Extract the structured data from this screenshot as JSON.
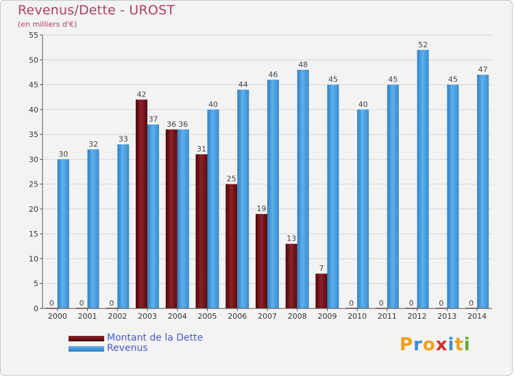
{
  "header": {
    "title": "Revenus/Dette - UROST",
    "subtitle": "(en milliers d'€)"
  },
  "legend": {
    "items": [
      {
        "label": "Montant de la Dette",
        "color": "#6b1014"
      },
      {
        "label": "Revenus",
        "color": "#4a9fe0"
      }
    ]
  },
  "logo": {
    "letters": [
      "P",
      "r",
      "o",
      "x",
      "i",
      "t",
      "i"
    ],
    "colors": [
      "#f0a020",
      "#3a8fd8",
      "#f0a020",
      "#d03030",
      "#3a8fd8",
      "#f0a020",
      "#60b030"
    ]
  },
  "chart_data": {
    "type": "bar",
    "title": "Revenus/Dette - UROST",
    "subtitle": "(en milliers d'€)",
    "categories": [
      "2000",
      "2001",
      "2002",
      "2003",
      "2004",
      "2005",
      "2006",
      "2007",
      "2008",
      "2009",
      "2010",
      "2011",
      "2012",
      "2013",
      "2014"
    ],
    "series": [
      {
        "name": "Montant de la Dette",
        "color": "#6b1014",
        "values": [
          0,
          0,
          0,
          42,
          36,
          31,
          25,
          19,
          13,
          7,
          0,
          0,
          0,
          0,
          0
        ]
      },
      {
        "name": "Revenus",
        "color": "#4a9fe0",
        "values": [
          30,
          32,
          33,
          37,
          36,
          40,
          44,
          46,
          48,
          45,
          40,
          45,
          52,
          45,
          47
        ]
      }
    ],
    "ylim": [
      0,
      55
    ],
    "yticks": [
      0,
      5,
      10,
      15,
      20,
      25,
      30,
      35,
      40,
      45,
      50,
      55
    ],
    "grid": true,
    "legend_position": "bottom-left"
  }
}
